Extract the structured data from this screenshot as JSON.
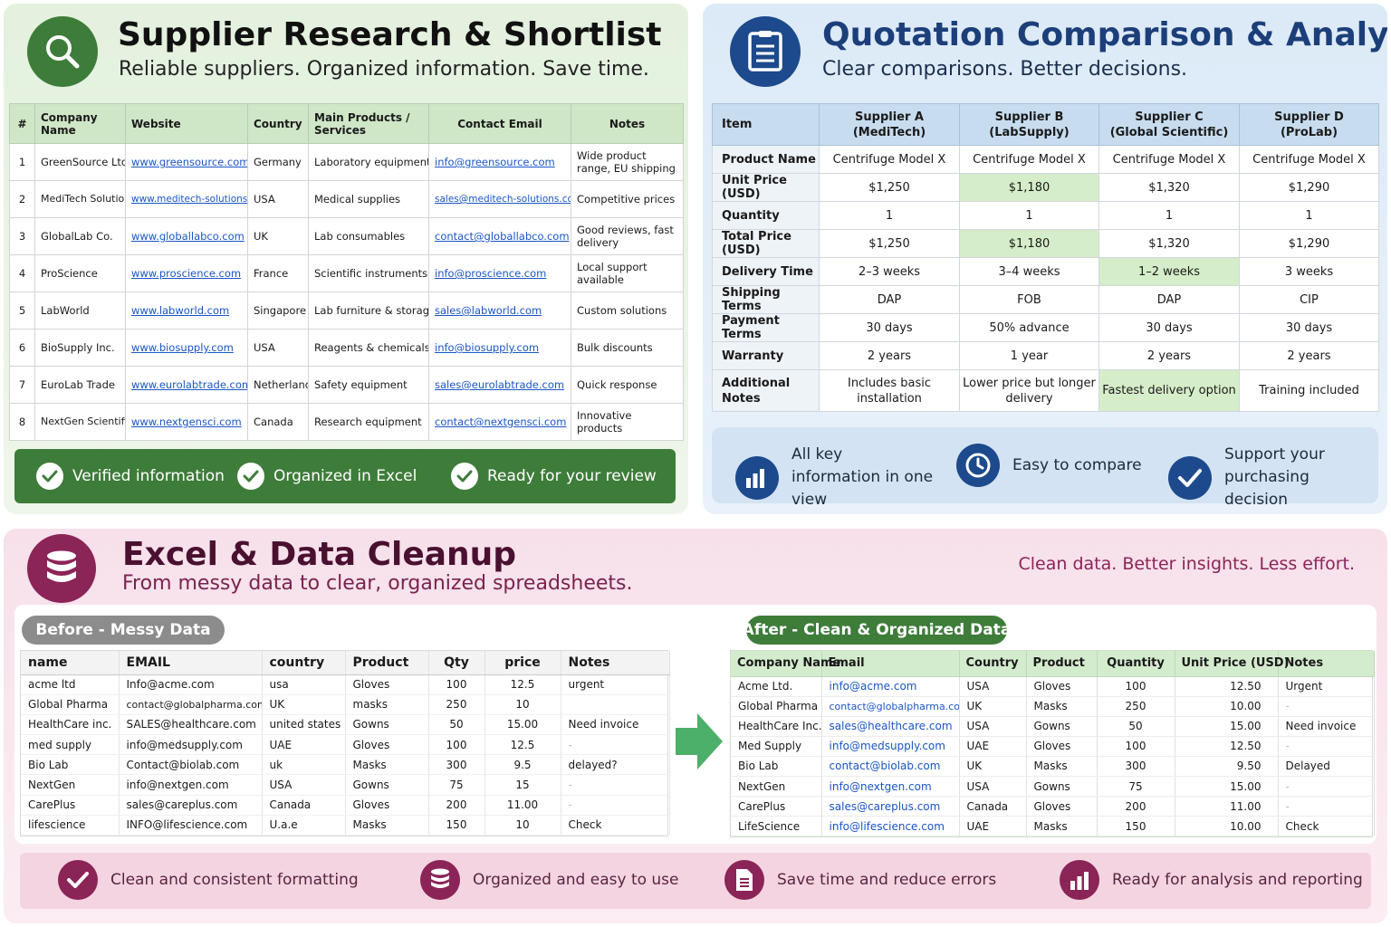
{
  "supplier": {
    "title": "Supplier Research & Shortlist",
    "subtitle": "Reliable suppliers. Organized information. Save time.",
    "icon": "search-icon",
    "columns": [
      "#",
      "Company Name",
      "Website",
      "Country",
      "Main Products / Services",
      "Contact Email",
      "Notes"
    ],
    "rows": [
      [
        "1",
        "GreenSource Ltd.",
        "www.greensource.com",
        "Germany",
        "Laboratory equipment",
        "info@greensource.com",
        "Wide product range, EU shipping"
      ],
      [
        "2",
        "MediTech Solutions",
        "www.meditech-solutions.com",
        "USA",
        "Medical supplies",
        "sales@meditech-solutions.com",
        "Competitive prices"
      ],
      [
        "3",
        "GlobalLab Co.",
        "www.globallabco.com",
        "UK",
        "Lab consumables",
        "contact@globallabco.com",
        "Good reviews, fast delivery"
      ],
      [
        "4",
        "ProScience",
        "www.proscience.com",
        "France",
        "Scientific instruments",
        "info@proscience.com",
        "Local support available"
      ],
      [
        "5",
        "LabWorld",
        "www.labworld.com",
        "Singapore",
        "Lab furniture & storage",
        "sales@labworld.com",
        "Custom solutions"
      ],
      [
        "6",
        "BioSupply Inc.",
        "www.biosupply.com",
        "USA",
        "Reagents & chemicals",
        "info@biosupply.com",
        "Bulk discounts"
      ],
      [
        "7",
        "EuroLab Trade",
        "www.eurolabtrade.com",
        "Netherlands",
        "Safety equipment",
        "sales@eurolabtrade.com",
        "Quick response"
      ],
      [
        "8",
        "NextGen Scientific",
        "www.nextgensci.com",
        "Canada",
        "Research equipment",
        "contact@nextgensci.com",
        "Innovative products"
      ]
    ],
    "features": [
      "Verified information",
      "Organized in Excel",
      "Ready for your review"
    ],
    "colors": {
      "accent": "#3e7c3a",
      "header": "#cfe6c7"
    }
  },
  "quotation": {
    "title": "Quotation Comparison & Analysis",
    "subtitle": "Clear comparisons. Better decisions.",
    "icon": "document-list-icon",
    "item_header": "Item",
    "suppliers": [
      {
        "line1": "Supplier A",
        "line2": "(MediTech)"
      },
      {
        "line1": "Supplier B",
        "line2": "(LabSupply)"
      },
      {
        "line1": "Supplier C",
        "line2": "(Global Scientific)"
      },
      {
        "line1": "Supplier D",
        "line2": "(ProLab)"
      }
    ],
    "rows": [
      {
        "label": "Product Name",
        "values": [
          "Centrifuge Model X",
          "Centrifuge Model X",
          "Centrifuge Model X",
          "Centrifuge Model X"
        ],
        "highlight": -1
      },
      {
        "label": "Unit Price (USD)",
        "values": [
          "$1,250",
          "$1,180",
          "$1,320",
          "$1,290"
        ],
        "highlight": 1
      },
      {
        "label": "Quantity",
        "values": [
          "1",
          "1",
          "1",
          "1"
        ],
        "highlight": -1
      },
      {
        "label": "Total Price (USD)",
        "values": [
          "$1,250",
          "$1,180",
          "$1,320",
          "$1,290"
        ],
        "highlight": 1
      },
      {
        "label": "Delivery Time",
        "values": [
          "2–3 weeks",
          "3–4 weeks",
          "1–2 weeks",
          "3 weeks"
        ],
        "highlight": 2
      },
      {
        "label": "Shipping Terms",
        "values": [
          "DAP",
          "FOB",
          "DAP",
          "CIP"
        ],
        "highlight": -1
      },
      {
        "label": "Payment Terms",
        "values": [
          "30 days",
          "50% advance",
          "30 days",
          "30 days"
        ],
        "highlight": -1
      },
      {
        "label": "Warranty",
        "values": [
          "2 years",
          "1 year",
          "2 years",
          "2 years"
        ],
        "highlight": -1
      },
      {
        "label": "Additional Notes",
        "values": [
          "Includes basic installation",
          "Lower price but longer delivery",
          "Fastest delivery option",
          "Training included"
        ],
        "highlight": 2
      }
    ],
    "features": [
      {
        "text": "All key information in one view",
        "icon": "bar-chart-icon"
      },
      {
        "text": "Easy to compare",
        "icon": "clock-icon"
      },
      {
        "text": "Support your purchasing decision",
        "icon": "check-icon"
      }
    ],
    "colors": {
      "accent": "#1c4a8c",
      "header": "#c7dcef",
      "highlight": "#d6edc9"
    }
  },
  "cleanup": {
    "title": "Excel & Data Cleanup",
    "subtitle": "From messy data to clear, organized spreadsheets.",
    "tagline": "Clean data. Better insights. Less effort.",
    "icon": "database-icon",
    "before_label": "Before - Messy Data",
    "after_label": "After - Clean & Organized Data",
    "before_columns": [
      "name",
      "EMAIL",
      "country",
      "Product",
      "Qty",
      "price",
      "Notes"
    ],
    "before_rows": [
      [
        "acme ltd",
        "Info@acme.com",
        " usa",
        "Gloves",
        "100",
        "12.5",
        "urgent"
      ],
      [
        " Global Pharma",
        "contact@globalpharma.com",
        "UK",
        "masks",
        "250",
        "10",
        ""
      ],
      [
        "HealthCare inc.",
        "SALES@healthcare.com",
        "united states",
        "Gowns",
        "50",
        "15.00",
        "Need invoice"
      ],
      [
        "med supply",
        "info@medsupply.com",
        "UAE",
        "Gloves",
        "100",
        "12.5",
        "-"
      ],
      [
        "Bio   Lab",
        "Contact@biolab.com",
        "uk",
        "Masks",
        "300",
        "9.5",
        "delayed?"
      ],
      [
        "NextGen",
        "info@nextgen.com",
        "USA",
        "Gowns",
        "75",
        "15",
        "-"
      ],
      [
        "CarePlus",
        "sales@careplus.com",
        "Canada",
        "Gloves",
        "200",
        "11.00",
        "-"
      ],
      [
        " lifescience",
        "INFO@lifescience.com",
        "U.a.e",
        "Masks",
        "150",
        "10",
        "Check"
      ]
    ],
    "after_columns": [
      "Company Name",
      "Email",
      "Country",
      "Product",
      "Quantity",
      "Unit Price (USD)",
      "Notes"
    ],
    "after_rows": [
      [
        "Acme Ltd.",
        "info@acme.com",
        "USA",
        "Gloves",
        "100",
        "12.50",
        "Urgent"
      ],
      [
        "Global Pharma",
        "contact@globalpharma.com",
        "UK",
        "Masks",
        "250",
        "10.00",
        "-"
      ],
      [
        "HealthCare Inc.",
        "sales@healthcare.com",
        "USA",
        "Gowns",
        "50",
        "15.00",
        "Need invoice"
      ],
      [
        "Med Supply",
        "info@medsupply.com",
        "UAE",
        "Gloves",
        "100",
        "12.50",
        "-"
      ],
      [
        "Bio Lab",
        "contact@biolab.com",
        "UK",
        "Masks",
        "300",
        "9.50",
        "Delayed"
      ],
      [
        "NextGen",
        "info@nextgen.com",
        "USA",
        "Gowns",
        "75",
        "15.00",
        "-"
      ],
      [
        "CarePlus",
        "sales@careplus.com",
        "Canada",
        "Gloves",
        "200",
        "11.00",
        "-"
      ],
      [
        "LifeScience",
        "info@lifescience.com",
        "UAE",
        "Masks",
        "150",
        "10.00",
        "Check"
      ]
    ],
    "features": [
      {
        "text": "Clean and consistent formatting",
        "icon": "check-icon"
      },
      {
        "text": "Organized and easy to use",
        "icon": "database-icon"
      },
      {
        "text": "Save time and reduce errors",
        "icon": "document-icon"
      },
      {
        "text": "Ready for analysis and reporting",
        "icon": "bar-chart-icon"
      }
    ],
    "colors": {
      "accent": "#8b2457",
      "header": "#d4ecce",
      "arrow": "#4caf6a"
    }
  }
}
